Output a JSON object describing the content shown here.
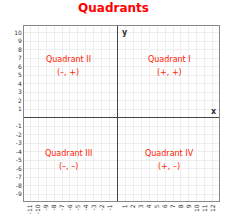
{
  "chart_data": {
    "type": "scatter",
    "title": "Quadrants",
    "color": "#ff0000",
    "xlabel": "x",
    "ylabel": "y",
    "xlim": [
      -11.8,
      12.8
    ],
    "ylim": [
      -9.8,
      10.8
    ],
    "xticks": [
      -11,
      -10,
      -9,
      -8,
      -7,
      -6,
      -5,
      -4,
      -3,
      -2,
      -1,
      1,
      2,
      3,
      4,
      5,
      6,
      7,
      8,
      9,
      10,
      11,
      12
    ],
    "yticks": [
      -9,
      -8,
      -7,
      -6,
      -5,
      -4,
      -3,
      -2,
      -1,
      1,
      2,
      3,
      4,
      5,
      6,
      7,
      8,
      9,
      10
    ],
    "grid": true,
    "annotations": [
      {
        "text": "Quadrant II",
        "x": -6.2,
        "y": 6.8,
        "color": "#ff2200"
      },
      {
        "text": "(–, +)",
        "x": -6.2,
        "y": 5.3,
        "color": "#ff2200"
      },
      {
        "text": "Quadrant I",
        "x": 6.5,
        "y": 6.8,
        "color": "#ff2200"
      },
      {
        "text": "(+, +)",
        "x": 6.5,
        "y": 5.3,
        "color": "#ff2200"
      },
      {
        "text": "Quadrant III",
        "x": -6.2,
        "y": -4.2,
        "color": "#ff2200"
      },
      {
        "text": "(–, –)",
        "x": -6.2,
        "y": -5.7,
        "color": "#ff2200"
      },
      {
        "text": "Quadrant IV",
        "x": 6.5,
        "y": -4.2,
        "color": "#ff2200"
      },
      {
        "text": "(+, –)",
        "x": 6.5,
        "y": -5.7,
        "color": "#ff2200"
      }
    ]
  }
}
